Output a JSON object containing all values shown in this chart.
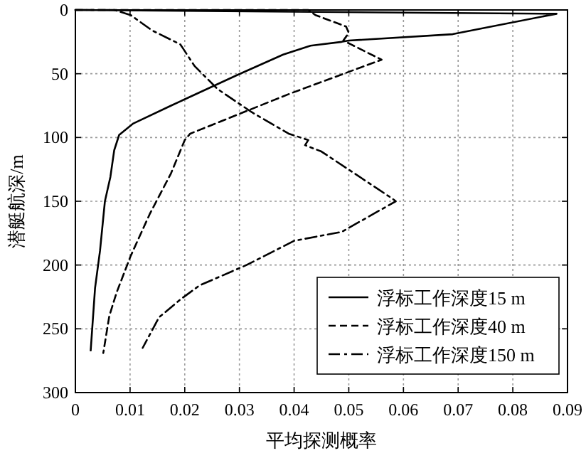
{
  "chart_data": {
    "type": "line",
    "xlabel": "平均探测概率",
    "ylabel": "潜艇航深/m",
    "xlim": [
      0,
      0.09
    ],
    "xticks": [
      0,
      0.01,
      0.02,
      0.03,
      0.04,
      0.05,
      0.06,
      0.07,
      0.08,
      0.09
    ],
    "ylim": [
      300,
      0
    ],
    "yticks": [
      0,
      50,
      100,
      150,
      200,
      250,
      300
    ],
    "grid": true,
    "legend": "bottom right",
    "marker": "none",
    "series": [
      {
        "name": "浮标工作深度15 m",
        "color": "#000000",
        "line_style": "solid",
        "x": [
          0,
          0.088,
          0.069,
          0.05,
          0.0487,
          0.043,
          0.038,
          0.0296,
          0.0175,
          0.0106,
          0.008,
          0.0071,
          0.0064,
          0.0054,
          0.0045,
          0.0036,
          0.0028
        ],
        "values": [
          0,
          3,
          19,
          24,
          25,
          28,
          35,
          51,
          75,
          89,
          98,
          110,
          131,
          150,
          189,
          218,
          267
        ]
      },
      {
        "name": "浮标工作深度40 m",
        "color": "#000000",
        "line_style": "dashed",
        "x": [
          0,
          0.0426,
          0.0439,
          0.0495,
          0.05,
          0.049,
          0.0504,
          0.056,
          0.039,
          0.021,
          0.02,
          0.0175,
          0.0136,
          0.0101,
          0.0075,
          0.0062,
          0.0051
        ],
        "values": [
          0,
          0,
          4,
          13,
          18,
          24,
          27,
          39,
          66,
          97,
          102,
          128,
          160,
          193,
          222,
          240,
          269
        ]
      },
      {
        "name": "浮标工作深度150 m",
        "color": "#000000",
        "line_style": "dashdot",
        "x": [
          0,
          0.0071,
          0.0101,
          0.014,
          0.0192,
          0.0218,
          0.026,
          0.0322,
          0.039,
          0.0426,
          0.042,
          0.045,
          0.058,
          0.0586,
          0.0487,
          0.04,
          0.0313,
          0.0227,
          0.0192,
          0.0153,
          0.0123
        ],
        "values": [
          0,
          0,
          4,
          16,
          27,
          44,
          62,
          80,
          97,
          102,
          106,
          111,
          148,
          150,
          174,
          181,
          200,
          216,
          227,
          241,
          265
        ]
      }
    ]
  }
}
